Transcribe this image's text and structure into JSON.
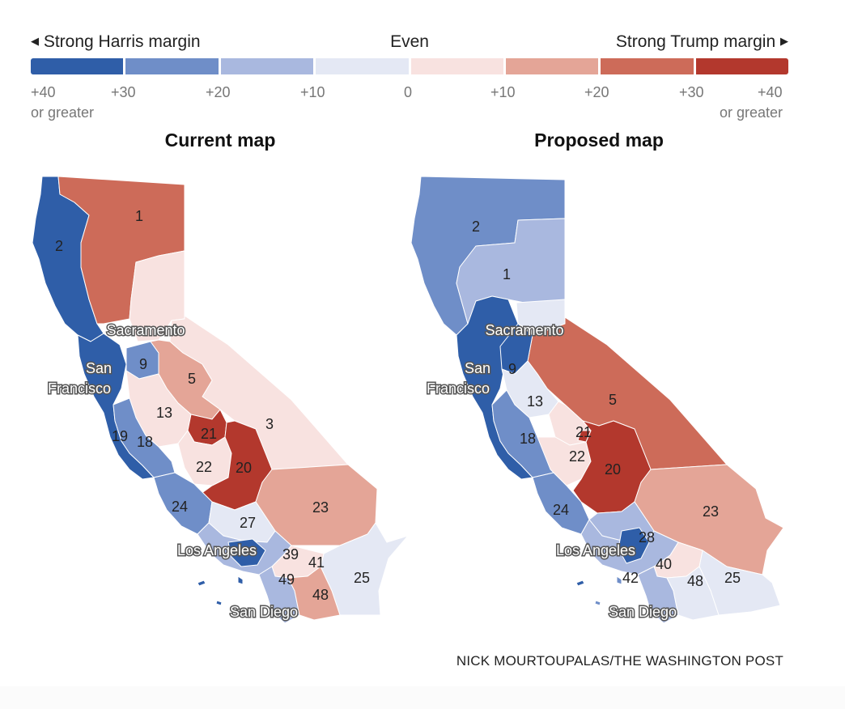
{
  "legend": {
    "left_label": "Strong Harris margin",
    "center_label": "Even",
    "right_label": "Strong Trump margin",
    "left_arrow": "◀",
    "right_arrow": "▶",
    "ticks": [
      "+40",
      "+30",
      "+20",
      "+10",
      "0",
      "+10",
      "+20",
      "+30",
      "+40"
    ],
    "left_sub": "or greater",
    "right_sub": "or greater",
    "colors": [
      "#2f5ea8",
      "#6f8ec8",
      "#a9b8df",
      "#e4e8f4",
      "#f8e2e0",
      "#e4a597",
      "#cd6b59",
      "#b3382d"
    ]
  },
  "maps": {
    "current": {
      "title": "Current map",
      "districts": [
        "1",
        "2",
        "3",
        "5",
        "9",
        "13",
        "18",
        "19",
        "20",
        "21",
        "22",
        "23",
        "24",
        "25",
        "27",
        "39",
        "41",
        "48",
        "49"
      ]
    },
    "proposed": {
      "title": "Proposed map",
      "districts": [
        "1",
        "2",
        "5",
        "9",
        "13",
        "18",
        "20",
        "21",
        "22",
        "23",
        "24",
        "25",
        "28",
        "40",
        "42",
        "48"
      ]
    }
  },
  "cities": {
    "sacramento": "Sacramento",
    "san": "San",
    "francisco": "Francisco",
    "los_angeles": "Los Angeles",
    "san_diego": "San Diego"
  },
  "credit": "NICK MOURTOUPALAS/THE WASHINGTON POST"
}
